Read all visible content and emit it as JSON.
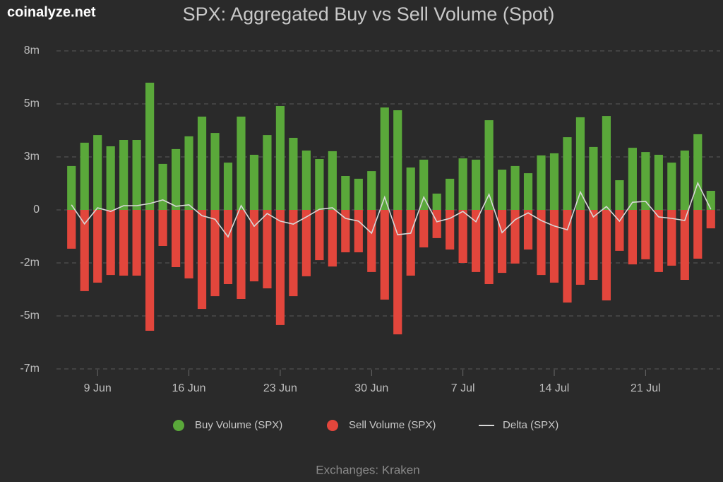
{
  "chart_data": {
    "type": "bar",
    "title": "SPX: Aggregated Buy vs Sell Volume (Spot)",
    "watermark": "coinalyze.net",
    "source": "Exchanges: Kraken",
    "categories": [
      null,
      null,
      "9 Jun",
      null,
      null,
      null,
      null,
      null,
      null,
      "16 Jun",
      null,
      null,
      null,
      null,
      null,
      null,
      "23 Jun",
      null,
      null,
      null,
      null,
      null,
      null,
      "30 Jun",
      null,
      null,
      null,
      null,
      null,
      null,
      "7 Jul",
      null,
      null,
      null,
      null,
      null,
      null,
      "14 Jul",
      null,
      null,
      null,
      null,
      null,
      null,
      "21 Jul",
      null,
      null,
      null,
      null,
      null
    ],
    "series": [
      {
        "name": "Buy Volume (SPX)",
        "color": "#5aa83a",
        "type": "bar",
        "values": [
          2.07,
          3.17,
          3.53,
          3.0,
          3.3,
          3.3,
          6.0,
          2.17,
          2.87,
          3.47,
          4.4,
          3.63,
          2.23,
          4.4,
          2.6,
          3.53,
          4.9,
          3.4,
          2.8,
          2.4,
          2.77,
          1.6,
          1.47,
          1.83,
          4.83,
          4.7,
          2.0,
          2.37,
          0.77,
          1.47,
          2.43,
          2.37,
          4.23,
          1.9,
          2.07,
          1.73,
          2.57,
          2.67,
          3.43,
          4.37,
          2.97,
          4.43,
          1.4,
          2.93,
          2.73,
          2.6,
          2.23,
          2.8,
          3.57,
          0.9
        ]
      },
      {
        "name": "Sell Volume (SPX)",
        "color": "#e2463c",
        "type": "bar",
        "values": [
          -1.83,
          -3.83,
          -3.43,
          -3.07,
          -3.1,
          -3.1,
          -5.7,
          -1.7,
          -2.7,
          -3.23,
          -4.67,
          -4.07,
          -3.5,
          -4.2,
          -3.37,
          -3.7,
          -5.43,
          -4.07,
          -3.13,
          -2.37,
          -2.67,
          -2.0,
          -2.0,
          -2.93,
          -4.23,
          -5.87,
          -3.1,
          -1.77,
          -1.33,
          -1.87,
          -2.5,
          -2.93,
          -3.5,
          -2.97,
          -2.53,
          -1.87,
          -3.07,
          -3.43,
          -4.37,
          -3.53,
          -3.3,
          -4.27,
          -1.93,
          -2.57,
          -2.33,
          -2.93,
          -2.63,
          -3.3,
          -2.3,
          -0.87
        ]
      },
      {
        "name": "Delta (SPX)",
        "color": "#d8d8d8",
        "type": "line",
        "values": [
          0.24,
          -0.66,
          0.1,
          -0.07,
          0.2,
          0.2,
          0.3,
          0.47,
          0.17,
          0.24,
          -0.27,
          -0.44,
          -1.27,
          0.2,
          -0.77,
          -0.17,
          -0.53,
          -0.67,
          -0.33,
          0.03,
          0.1,
          -0.4,
          -0.53,
          -1.1,
          0.6,
          -1.17,
          -1.1,
          0.6,
          -0.56,
          -0.4,
          -0.07,
          -0.56,
          0.73,
          -1.07,
          -0.46,
          -0.14,
          -0.5,
          -0.76,
          -0.94,
          0.84,
          -0.33,
          0.16,
          -0.53,
          0.36,
          0.4,
          -0.33,
          -0.4,
          -0.5,
          1.27,
          0.03
        ]
      }
    ],
    "ylim": [
      -7.5,
      7.5
    ],
    "yticks": [
      {
        "value": 7.5,
        "label": "8m"
      },
      {
        "value": 5,
        "label": "5m"
      },
      {
        "value": 2.5,
        "label": "3m"
      },
      0,
      {
        "value": -2.5,
        "label": "-2m"
      },
      {
        "value": -5,
        "label": "-5m"
      },
      {
        "value": -7.5,
        "label": "-7m"
      }
    ],
    "grid": true
  }
}
